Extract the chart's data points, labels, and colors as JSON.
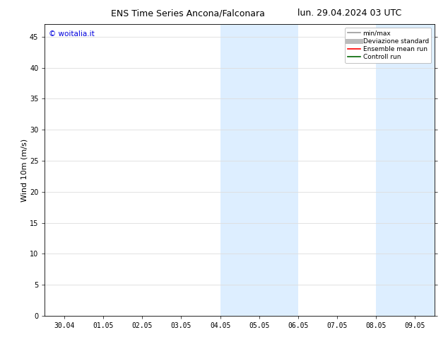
{
  "title_left": "ENS Time Series Ancona/Falconara",
  "title_right": "lun. 29.04.2024 03 UTC",
  "ylabel": "Wind 10m (m/s)",
  "watermark": "© woitalia.it",
  "watermark_color": "#0000dd",
  "ylim": [
    0,
    47
  ],
  "yticks": [
    0,
    5,
    10,
    15,
    20,
    25,
    30,
    35,
    40,
    45
  ],
  "xtick_labels": [
    "30.04",
    "01.05",
    "02.05",
    "03.05",
    "04.05",
    "05.05",
    "06.05",
    "07.05",
    "08.05",
    "09.05"
  ],
  "shaded_regions": [
    {
      "xstart": 4.0,
      "xend": 6.0
    },
    {
      "xstart": 8.0,
      "xend": 9.5
    }
  ],
  "shade_color": "#ddeeff",
  "legend_entries": [
    {
      "label": "min/max",
      "color": "#999999",
      "linewidth": 1.2
    },
    {
      "label": "Deviazione standard",
      "color": "#bbbbbb",
      "linewidth": 5
    },
    {
      "label": "Ensemble mean run",
      "color": "#ff0000",
      "linewidth": 1.2
    },
    {
      "label": "Controll run",
      "color": "#006600",
      "linewidth": 1.2
    }
  ],
  "background_color": "#ffffff",
  "grid_color": "#dddddd",
  "title_fontsize": 9,
  "ylabel_fontsize": 8,
  "tick_fontsize": 7,
  "watermark_fontsize": 7.5,
  "legend_fontsize": 6.5
}
